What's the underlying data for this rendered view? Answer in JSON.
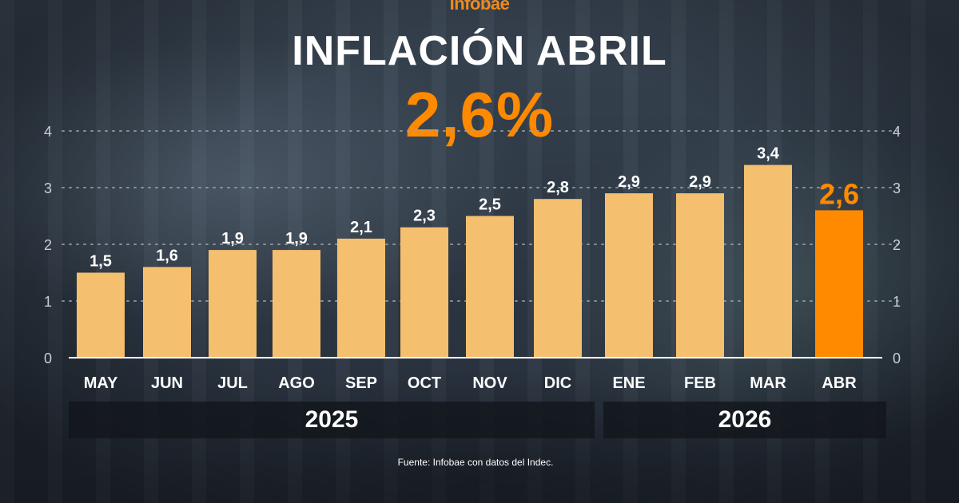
{
  "header": {
    "brand": "Infobae",
    "title": "INFLACIÓN ABRIL",
    "headline_value": "2,6%"
  },
  "colors": {
    "bar": "#f4bf6e",
    "highlight_bar": "#ff8a00",
    "highlight_label": "#ff8a00",
    "label": "#ffffff",
    "gridline": "#9aa3ad"
  },
  "chart_data": {
    "type": "bar",
    "categories": [
      "MAY",
      "JUN",
      "JUL",
      "AGO",
      "SEP",
      "OCT",
      "NOV",
      "DIC",
      "ENE",
      "FEB",
      "MAR",
      "ABR"
    ],
    "values": [
      1.5,
      1.6,
      1.9,
      1.9,
      2.1,
      2.3,
      2.5,
      2.8,
      2.9,
      2.9,
      3.4,
      2.6
    ],
    "value_labels": [
      "1,5",
      "1,6",
      "1,9",
      "1,9",
      "2,1",
      "2,3",
      "2,5",
      "2,8",
      "2,9",
      "2,9",
      "3,4",
      "2,6"
    ],
    "highlight_index": 11,
    "ylim": [
      0,
      4
    ],
    "yticks": [
      0,
      1,
      2,
      3,
      4
    ],
    "grid": true,
    "groups": [
      {
        "label": "2025",
        "categories": [
          "MAY",
          "JUN",
          "JUL",
          "AGO",
          "SEP",
          "OCT",
          "NOV",
          "DIC"
        ]
      },
      {
        "label": "2026",
        "categories": [
          "ENE",
          "FEB",
          "MAR",
          "ABR"
        ]
      }
    ]
  },
  "footer": {
    "source": "Fuente: Infobae con datos del Indec."
  }
}
